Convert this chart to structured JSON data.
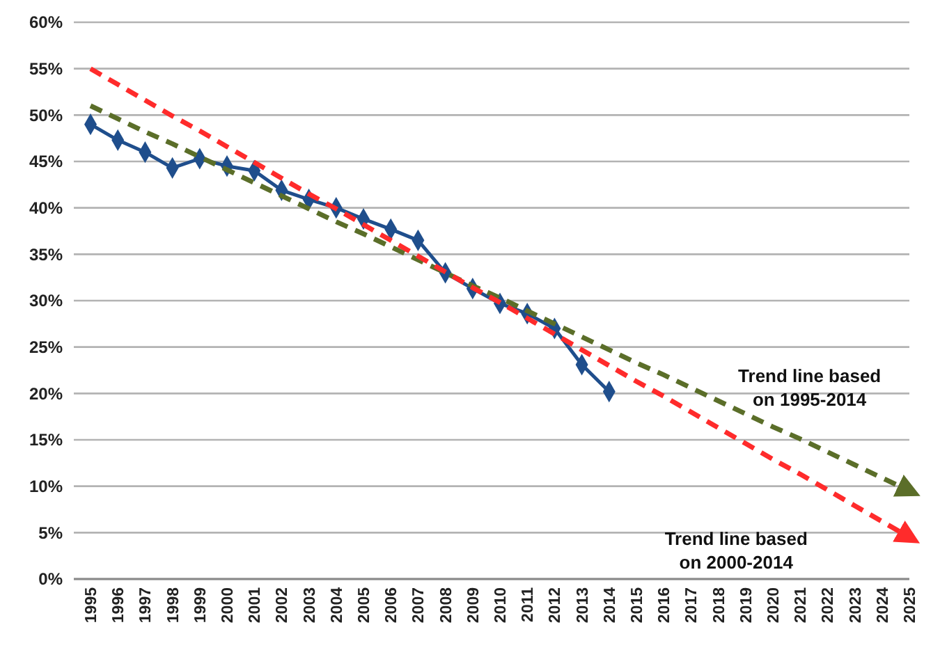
{
  "chart_data": {
    "type": "line",
    "categories": [
      "1995",
      "1996",
      "1997",
      "1998",
      "1999",
      "2000",
      "2001",
      "2002",
      "2003",
      "2004",
      "2005",
      "2006",
      "2007",
      "2008",
      "2009",
      "2010",
      "2011",
      "2012",
      "2013",
      "2014",
      "2015",
      "2016",
      "2017",
      "2018",
      "2019",
      "2020",
      "2021",
      "2022",
      "2023",
      "2024",
      "2025"
    ],
    "series": [
      {
        "color": "#1f4e8c",
        "marker": "diamond",
        "line_style": "solid",
        "values": [
          49,
          47.3,
          46,
          44.3,
          45.3,
          44.5,
          44,
          41.9,
          40.9,
          40,
          38.8,
          37.7,
          36.5,
          33,
          31.3,
          29.7,
          28.6,
          27,
          23.1,
          20.2,
          null,
          null,
          null,
          null,
          null,
          null,
          null,
          null,
          null,
          null,
          null
        ]
      },
      {
        "color": "#5b6e29",
        "marker": "none",
        "line_style": "dashed",
        "values": [
          51,
          49.6,
          48.2,
          46.9,
          45.5,
          44.1,
          42.7,
          41.3,
          39.9,
          38.5,
          37.2,
          35.8,
          34.4,
          33.0,
          31.6,
          30.3,
          28.9,
          27.5,
          26.1,
          24.7,
          23.3,
          22.0,
          20.6,
          19.2,
          17.8,
          16.4,
          15.1,
          13.7,
          12.3,
          10.9,
          9.5
        ]
      },
      {
        "color": "#ff2b2b",
        "marker": "none",
        "line_style": "dashed",
        "values": [
          55,
          53.3,
          51.6,
          49.9,
          48.3,
          46.6,
          44.9,
          43.2,
          41.5,
          39.9,
          38.2,
          36.5,
          34.8,
          33.1,
          31.4,
          29.8,
          28.1,
          26.4,
          24.7,
          23.0,
          21.3,
          19.7,
          18.0,
          16.3,
          14.6,
          12.9,
          11.3,
          9.6,
          7.9,
          6.2,
          4.5
        ]
      }
    ],
    "ylim": [
      0,
      60
    ],
    "yticks": [
      {
        "value": 0,
        "label": "0%"
      },
      {
        "value": 5,
        "label": "5%"
      },
      {
        "value": 10,
        "label": "10%"
      },
      {
        "value": 15,
        "label": "15%"
      },
      {
        "value": 20,
        "label": "20%"
      },
      {
        "value": 25,
        "label": "25%"
      },
      {
        "value": 30,
        "label": "30%"
      },
      {
        "value": 35,
        "label": "35%"
      },
      {
        "value": 40,
        "label": "40%"
      },
      {
        "value": 45,
        "label": "45%"
      },
      {
        "value": 50,
        "label": "50%"
      },
      {
        "value": 55,
        "label": "55%"
      },
      {
        "value": 60,
        "label": "60%"
      }
    ],
    "grid": "y",
    "annotations": [
      "Trend line based on 1995-2014",
      "Trend line based on 2000-2014"
    ]
  }
}
